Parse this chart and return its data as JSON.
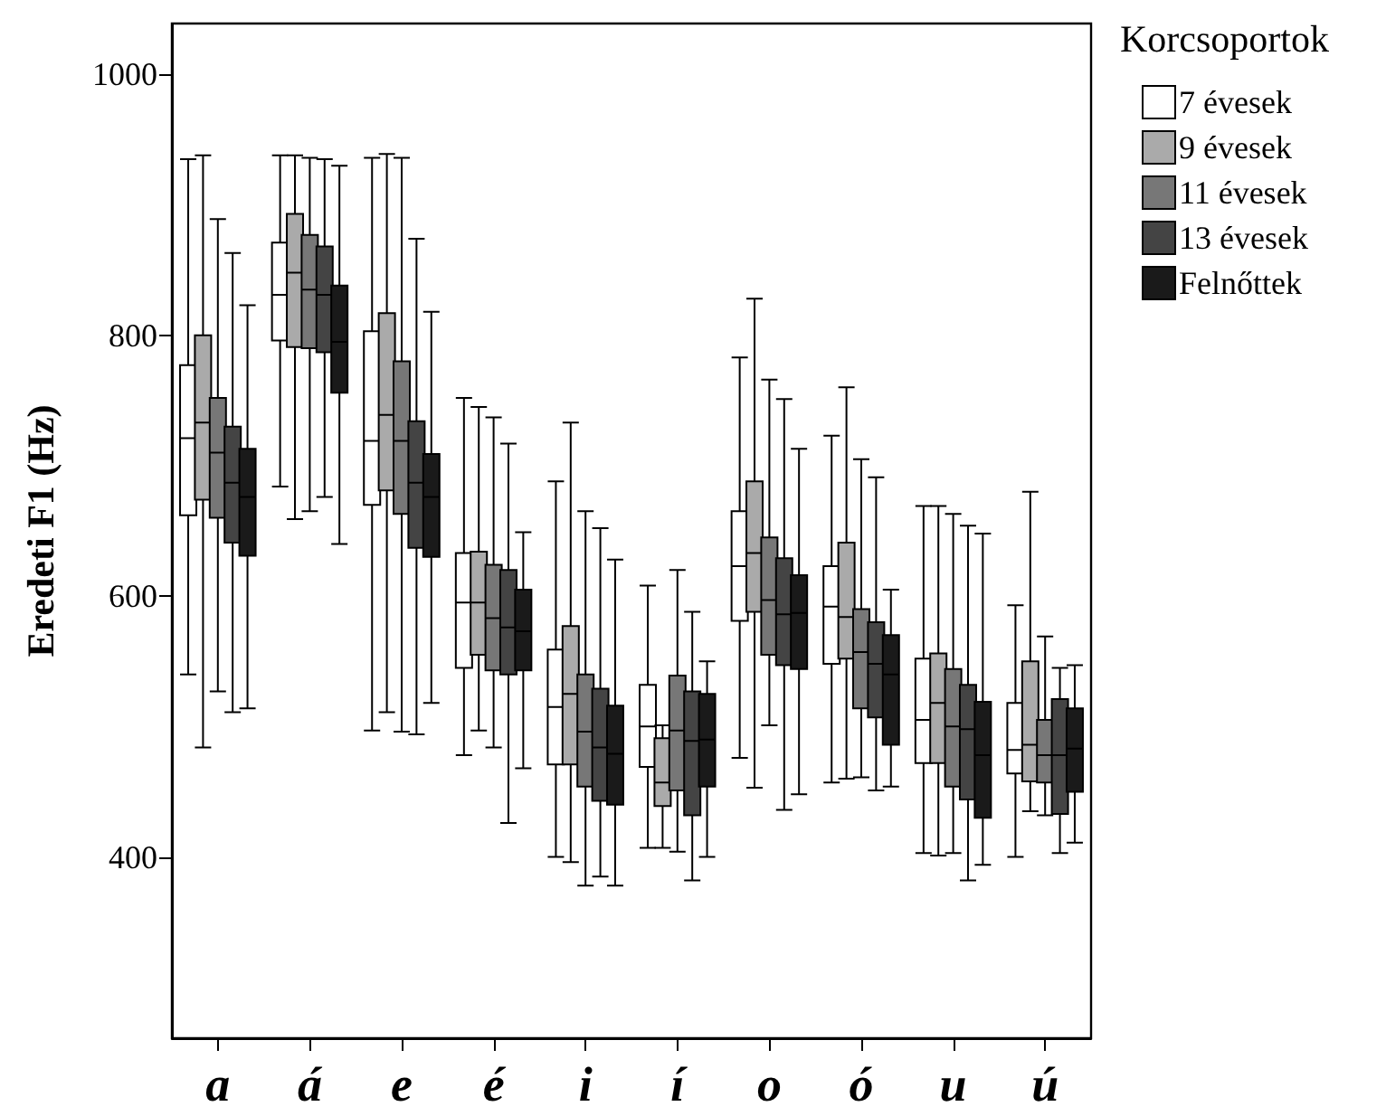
{
  "chart_data": {
    "type": "box",
    "ylabel": "Eredeti F1 (Hz)",
    "legend_title": "Korcsoportok",
    "legend": "top right",
    "grid": false,
    "categories": [
      "a",
      "á",
      "e",
      "é",
      "i",
      "í",
      "o",
      "ó",
      "u",
      "ú"
    ],
    "ylim": [
      261,
      1039
    ],
    "yticks": [
      400,
      600,
      800,
      1000
    ],
    "series": [
      {
        "name": "7 évesek",
        "color": "#ffffff",
        "boxes": [
          {
            "low": 540,
            "q1": 662,
            "median": 721,
            "q3": 777,
            "high": 935
          },
          {
            "low": 684,
            "q1": 796,
            "median": 831,
            "q3": 871,
            "high": 938
          },
          {
            "low": 497,
            "q1": 670,
            "median": 719,
            "q3": 803,
            "high": 936
          },
          {
            "low": 478,
            "q1": 545,
            "median": 595,
            "q3": 633,
            "high": 752
          },
          {
            "low": 400,
            "q1": 471,
            "median": 515,
            "q3": 559,
            "high": 688
          },
          {
            "low": 407,
            "q1": 469,
            "median": 500,
            "q3": 532,
            "high": 608
          },
          {
            "low": 476,
            "q1": 581,
            "median": 623,
            "q3": 665,
            "high": 783
          },
          {
            "low": 457,
            "q1": 548,
            "median": 592,
            "q3": 623,
            "high": 723
          },
          {
            "low": 403,
            "q1": 472,
            "median": 505,
            "q3": 552,
            "high": 669
          },
          {
            "low": 400,
            "q1": 464,
            "median": 482,
            "q3": 518,
            "high": 593
          }
        ]
      },
      {
        "name": "9 évesek",
        "color": "#aaaaaa",
        "boxes": [
          {
            "low": 484,
            "q1": 674,
            "median": 733,
            "q3": 800,
            "high": 938
          },
          {
            "low": 659,
            "q1": 791,
            "median": 848,
            "q3": 893,
            "high": 938
          },
          {
            "low": 511,
            "q1": 681,
            "median": 739,
            "q3": 817,
            "high": 939
          },
          {
            "low": 497,
            "q1": 555,
            "median": 595,
            "q3": 634,
            "high": 745
          },
          {
            "low": 396,
            "q1": 471,
            "median": 525,
            "q3": 577,
            "high": 733
          },
          {
            "low": 407,
            "q1": 439,
            "median": 457,
            "q3": 491,
            "high": 501
          },
          {
            "low": 453,
            "q1": 588,
            "median": 633,
            "q3": 688,
            "high": 828
          },
          {
            "low": 460,
            "q1": 552,
            "median": 584,
            "q3": 641,
            "high": 760
          },
          {
            "low": 401,
            "q1": 472,
            "median": 518,
            "q3": 556,
            "high": 669
          },
          {
            "low": 435,
            "q1": 458,
            "median": 486,
            "q3": 550,
            "high": 680
          }
        ]
      },
      {
        "name": "11 évesek",
        "color": "#777777",
        "boxes": [
          {
            "low": 527,
            "q1": 660,
            "median": 710,
            "q3": 752,
            "high": 889
          },
          {
            "low": 665,
            "q1": 790,
            "median": 835,
            "q3": 877,
            "high": 936
          },
          {
            "low": 496,
            "q1": 663,
            "median": 719,
            "q3": 780,
            "high": 936
          },
          {
            "low": 484,
            "q1": 543,
            "median": 583,
            "q3": 624,
            "high": 737
          },
          {
            "low": 378,
            "q1": 454,
            "median": 496,
            "q3": 540,
            "high": 665
          },
          {
            "low": 404,
            "q1": 451,
            "median": 497,
            "q3": 539,
            "high": 620
          },
          {
            "low": 501,
            "q1": 555,
            "median": 597,
            "q3": 645,
            "high": 766
          },
          {
            "low": 461,
            "q1": 514,
            "median": 557,
            "q3": 590,
            "high": 705
          },
          {
            "low": 403,
            "q1": 454,
            "median": 500,
            "q3": 544,
            "high": 663
          },
          {
            "low": 432,
            "q1": 457,
            "median": 478,
            "q3": 505,
            "high": 569
          }
        ]
      },
      {
        "name": "13 évesek",
        "color": "#444444",
        "boxes": [
          {
            "low": 511,
            "q1": 641,
            "median": 687,
            "q3": 730,
            "high": 863
          },
          {
            "low": 676,
            "q1": 787,
            "median": 831,
            "q3": 868,
            "high": 935
          },
          {
            "low": 494,
            "q1": 637,
            "median": 687,
            "q3": 734,
            "high": 874
          },
          {
            "low": 426,
            "q1": 540,
            "median": 576,
            "q3": 620,
            "high": 717
          },
          {
            "low": 385,
            "q1": 443,
            "median": 484,
            "q3": 529,
            "high": 652
          },
          {
            "low": 382,
            "q1": 432,
            "median": 489,
            "q3": 527,
            "high": 588
          },
          {
            "low": 436,
            "q1": 547,
            "median": 586,
            "q3": 629,
            "high": 751
          },
          {
            "low": 451,
            "q1": 507,
            "median": 548,
            "q3": 580,
            "high": 691
          },
          {
            "low": 382,
            "q1": 444,
            "median": 498,
            "q3": 532,
            "high": 654
          },
          {
            "low": 403,
            "q1": 433,
            "median": 478,
            "q3": 521,
            "high": 545
          }
        ]
      },
      {
        "name": "Felnőttek",
        "color": "#1a1a1a",
        "boxes": [
          {
            "low": 514,
            "q1": 631,
            "median": 676,
            "q3": 713,
            "high": 823
          },
          {
            "low": 640,
            "q1": 756,
            "median": 795,
            "q3": 838,
            "high": 930
          },
          {
            "low": 518,
            "q1": 630,
            "median": 676,
            "q3": 709,
            "high": 818
          },
          {
            "low": 468,
            "q1": 543,
            "median": 573,
            "q3": 605,
            "high": 649
          },
          {
            "low": 378,
            "q1": 440,
            "median": 479,
            "q3": 516,
            "high": 628
          },
          {
            "low": 400,
            "q1": 454,
            "median": 490,
            "q3": 525,
            "high": 550
          },
          {
            "low": 448,
            "q1": 544,
            "median": 587,
            "q3": 616,
            "high": 713
          },
          {
            "low": 454,
            "q1": 486,
            "median": 540,
            "q3": 570,
            "high": 605
          },
          {
            "low": 394,
            "q1": 430,
            "median": 478,
            "q3": 519,
            "high": 648
          },
          {
            "low": 411,
            "q1": 450,
            "median": 483,
            "q3": 514,
            "high": 547
          }
        ]
      }
    ]
  }
}
